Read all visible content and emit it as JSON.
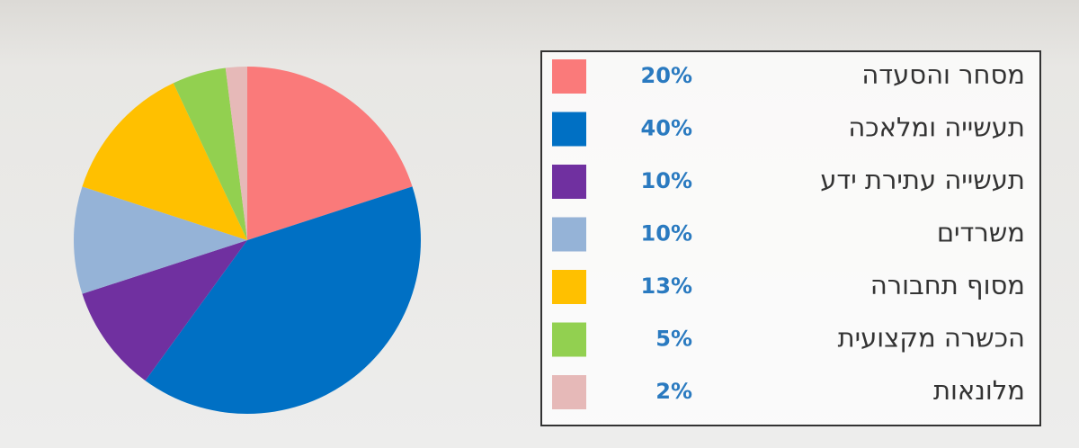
{
  "chart_data": {
    "type": "pie",
    "categories": [
      "מסחר והסעדה",
      "תעשייה ומלאכה",
      "תעשייה עתירת ידע",
      "משרדים",
      "מסוף תחבורה",
      "הכשרה מקצועית",
      "מלונאות"
    ],
    "values": [
      20,
      40,
      10,
      10,
      13,
      5,
      2
    ],
    "value_labels": [
      "20%",
      "40%",
      "10%",
      "10%",
      "13%",
      "5%",
      "2%"
    ],
    "colors": [
      "#fa7a7a",
      "#0070c4",
      "#7030a0",
      "#95b3d7",
      "#ffc000",
      "#92d050",
      "#e6b9b8"
    ]
  }
}
